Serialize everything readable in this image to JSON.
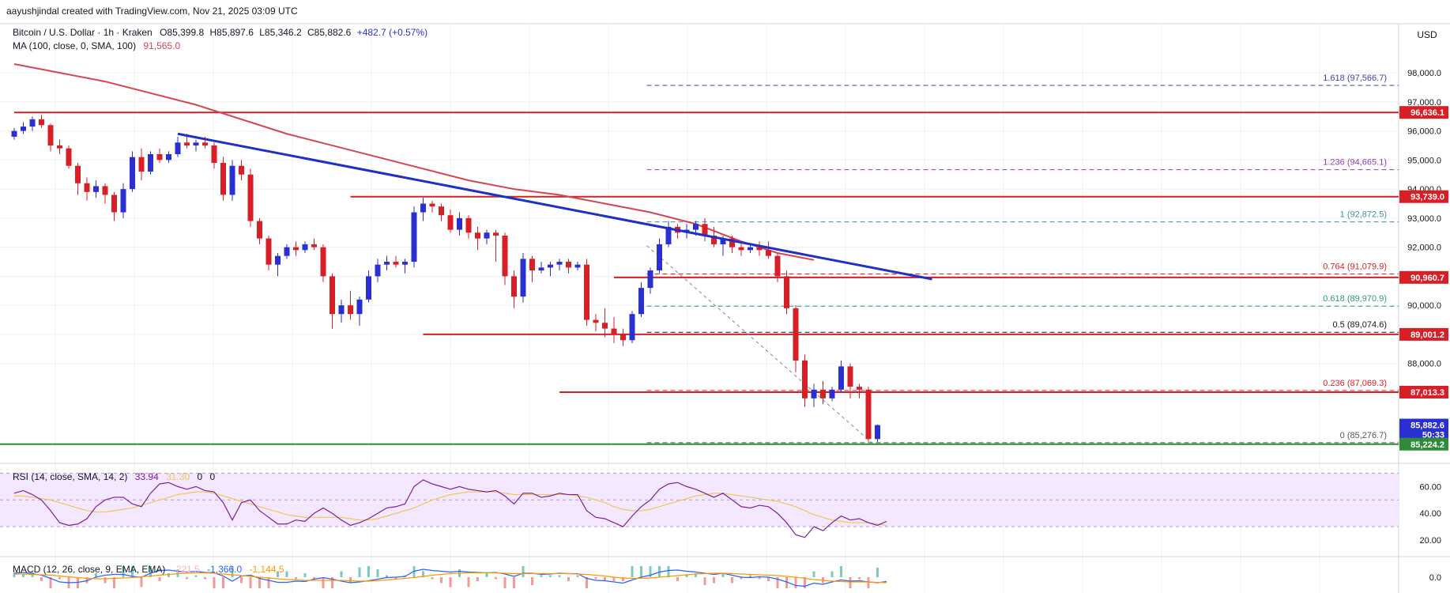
{
  "header": {
    "attribution": "aayushjindal created with TradingView.com, Nov 21, 2025 03:09 UTC",
    "symbol": "Bitcoin / U.S. Dollar · 1h · Kraken",
    "ohlc": {
      "o_label": "O",
      "o": "85,399.8",
      "h_label": "H",
      "h": "85,897.6",
      "l_label": "L",
      "l": "85,346.2",
      "c_label": "C",
      "c": "85,882.6",
      "change": "+482.7 (+0.57%)"
    },
    "ma_label": "MA (100, close, 0, SMA, 100)",
    "ma_value": "91,565.0",
    "currency": "USD"
  },
  "colors": {
    "up": "#2a2fd1",
    "down": "#d91f26",
    "ma": "#d64550",
    "trendline": "#1f2fc8",
    "resistance": "#d91f26",
    "support": "#2e8b3a",
    "rsi_line": "#7b1fa2",
    "rsi_ma": "#f2c94c",
    "rsi_band": "#f3e8ff",
    "macd": "#2962ff",
    "signal": "#ff9800"
  },
  "price_axis": {
    "ticks": [
      "98,000.0",
      "97,000.0",
      "96,000.0",
      "95,000.0",
      "94,000.0",
      "93,000.0",
      "92,000.0",
      "91,000.0",
      "90,000.0",
      "89,000.0",
      "88,000.0"
    ]
  },
  "price_tags": [
    {
      "value": "96,636.1",
      "color": "#d91f26"
    },
    {
      "value": "93,739.0",
      "color": "#d91f26"
    },
    {
      "value": "90,960.7",
      "color": "#d91f26"
    },
    {
      "value": "89,001.2",
      "color": "#d91f26"
    },
    {
      "value": "87,013.3",
      "color": "#d91f26"
    },
    {
      "value": "85,882.6",
      "color": "#2a2fd1",
      "countdown": "50:33"
    },
    {
      "value": "85,224.2",
      "color": "#2e8b3a"
    }
  ],
  "fib_levels": [
    {
      "ratio": "1.618",
      "price": "(97,566.7)",
      "color": "#3f3fb0"
    },
    {
      "ratio": "1.236",
      "price": "(94,665.1)",
      "color": "#8e3fb0"
    },
    {
      "ratio": "1",
      "price": "(92,872.5)",
      "color": "#3f8fb0"
    },
    {
      "ratio": "0.764",
      "price": "(91,079.9)",
      "color": "#d91f26"
    },
    {
      "ratio": "0.618",
      "price": "(89,970.9)",
      "color": "#2e9b6a"
    },
    {
      "ratio": "0.5",
      "price": "(89,074.6)",
      "color": "#131722"
    },
    {
      "ratio": "0.236",
      "price": "(87,069.3)",
      "color": "#d91f26"
    },
    {
      "ratio": "0",
      "price": "(85,276.7)",
      "color": "#555555"
    }
  ],
  "rsi": {
    "label": "RSI (14, close, SMA, 14, 2)",
    "value": "33.94",
    "ma_value": "31.30",
    "extra1": "0",
    "extra2": "0",
    "ticks": [
      "60.00",
      "40.00",
      "20.00"
    ]
  },
  "macd": {
    "label": "MACD (12, 26, close, 9, EMA, EMA)",
    "hist": "-221.5",
    "macd": "-1,366.0",
    "signal": "-1,144.5",
    "ticks": [
      "0.0"
    ]
  },
  "chart_data": {
    "type": "candlestick",
    "title": "Bitcoin / U.S. Dollar · 1h · Kraken",
    "ylim": [
      85000,
      98600
    ],
    "candles": [
      [
        95800,
        96100,
        95700,
        96000
      ],
      [
        96000,
        96300,
        95900,
        96150
      ],
      [
        96150,
        96500,
        96000,
        96400
      ],
      [
        96400,
        96550,
        96100,
        96200
      ],
      [
        96200,
        96250,
        95300,
        95500
      ],
      [
        95500,
        95700,
        95200,
        95400
      ],
      [
        95400,
        95500,
        94700,
        94800
      ],
      [
        94800,
        94900,
        93800,
        94200
      ],
      [
        94200,
        94400,
        93600,
        93900
      ],
      [
        93900,
        94300,
        93700,
        94100
      ],
      [
        94100,
        94200,
        93500,
        93800
      ],
      [
        93800,
        93900,
        92900,
        93200
      ],
      [
        93200,
        94200,
        93000,
        94000
      ],
      [
        94000,
        95300,
        93900,
        95100
      ],
      [
        95100,
        95400,
        94300,
        94600
      ],
      [
        94600,
        95300,
        94500,
        95200
      ],
      [
        95200,
        95400,
        94900,
        95000
      ],
      [
        95000,
        95300,
        94900,
        95200
      ],
      [
        95200,
        95800,
        95100,
        95600
      ],
      [
        95600,
        95900,
        95400,
        95500
      ],
      [
        95500,
        95700,
        95300,
        95600
      ],
      [
        95600,
        95800,
        95400,
        95500
      ],
      [
        95500,
        95600,
        94700,
        94900
      ],
      [
        94900,
        95100,
        93600,
        93800
      ],
      [
        93800,
        95000,
        93600,
        94800
      ],
      [
        94800,
        95000,
        94300,
        94500
      ],
      [
        94500,
        94700,
        92700,
        92900
      ],
      [
        92900,
        93000,
        92100,
        92300
      ],
      [
        92300,
        92400,
        91200,
        91400
      ],
      [
        91400,
        91800,
        91000,
        91700
      ],
      [
        91700,
        92100,
        91600,
        92000
      ],
      [
        92000,
        92200,
        91700,
        91900
      ],
      [
        91900,
        92200,
        91800,
        92100
      ],
      [
        92100,
        92300,
        91900,
        92000
      ],
      [
        92000,
        92100,
        90800,
        91000
      ],
      [
        91000,
        91100,
        89200,
        89700
      ],
      [
        89700,
        90200,
        89400,
        90000
      ],
      [
        90000,
        90500,
        89500,
        89700
      ],
      [
        89700,
        90300,
        89300,
        90200
      ],
      [
        90200,
        91200,
        90100,
        91000
      ],
      [
        91000,
        91600,
        90800,
        91400
      ],
      [
        91400,
        91700,
        91200,
        91500
      ],
      [
        91500,
        91700,
        91300,
        91400
      ],
      [
        91400,
        91600,
        91100,
        91500
      ],
      [
        91500,
        93400,
        91300,
        93200
      ],
      [
        93200,
        93700,
        92900,
        93500
      ],
      [
        93500,
        93600,
        93200,
        93400
      ],
      [
        93400,
        93500,
        92900,
        93100
      ],
      [
        93100,
        93300,
        92500,
        92600
      ],
      [
        92600,
        93200,
        92400,
        93000
      ],
      [
        93000,
        93100,
        92300,
        92500
      ],
      [
        92500,
        92700,
        91900,
        92300
      ],
      [
        92300,
        92600,
        92100,
        92500
      ],
      [
        92500,
        92600,
        91500,
        92400
      ],
      [
        92400,
        92500,
        90700,
        91000
      ],
      [
        91000,
        91200,
        89900,
        90300
      ],
      [
        90300,
        91800,
        90100,
        91600
      ],
      [
        91600,
        91700,
        90800,
        91200
      ],
      [
        91200,
        91500,
        91100,
        91300
      ],
      [
        91300,
        91500,
        91000,
        91400
      ],
      [
        91400,
        91600,
        91200,
        91500
      ],
      [
        91500,
        91600,
        91100,
        91300
      ],
      [
        91300,
        91500,
        91200,
        91400
      ],
      [
        91400,
        91600,
        89300,
        89500
      ],
      [
        89500,
        89700,
        89100,
        89400
      ],
      [
        89400,
        89900,
        88900,
        89200
      ],
      [
        89200,
        89600,
        88700,
        89000
      ],
      [
        89000,
        89200,
        88600,
        88800
      ],
      [
        88800,
        89800,
        88700,
        89700
      ],
      [
        89700,
        90800,
        89600,
        90600
      ],
      [
        90600,
        91300,
        90400,
        91200
      ],
      [
        91200,
        92300,
        91100,
        92100
      ],
      [
        92100,
        92900,
        92000,
        92700
      ],
      [
        92700,
        92800,
        92300,
        92500
      ],
      [
        92500,
        92800,
        92300,
        92600
      ],
      [
        92600,
        92900,
        92400,
        92800
      ],
      [
        92800,
        93000,
        92200,
        92400
      ],
      [
        92400,
        92700,
        92000,
        92100
      ],
      [
        92100,
        92400,
        91700,
        92300
      ],
      [
        92300,
        92400,
        91800,
        92000
      ],
      [
        92000,
        92200,
        91700,
        91900
      ],
      [
        91900,
        92100,
        91800,
        92000
      ],
      [
        92000,
        92200,
        91700,
        91900
      ],
      [
        91900,
        92200,
        91600,
        91700
      ],
      [
        91700,
        91800,
        90800,
        91000
      ],
      [
        91000,
        91200,
        89700,
        89900
      ],
      [
        89900,
        90000,
        87700,
        88100
      ],
      [
        88100,
        88300,
        86500,
        86800
      ],
      [
        86800,
        87300,
        86500,
        87100
      ],
      [
        87100,
        87400,
        86600,
        86800
      ],
      [
        86800,
        87200,
        86700,
        87100
      ],
      [
        87100,
        88100,
        87000,
        87900
      ],
      [
        87900,
        88000,
        86800,
        87200
      ],
      [
        87200,
        87300,
        86800,
        87100
      ],
      [
        87100,
        87200,
        85300,
        85400
      ],
      [
        85400,
        85900,
        85300,
        85880
      ]
    ],
    "ma_points": [
      [
        0,
        98300
      ],
      [
        10,
        97700
      ],
      [
        20,
        96900
      ],
      [
        30,
        95900
      ],
      [
        40,
        95100
      ],
      [
        50,
        94300
      ],
      [
        55,
        94000
      ],
      [
        60,
        93800
      ],
      [
        65,
        93500
      ],
      [
        70,
        93200
      ],
      [
        75,
        92800
      ],
      [
        80,
        92200
      ],
      [
        84,
        91800
      ],
      [
        88,
        91560
      ]
    ],
    "trendline": {
      "start": [
        18,
        95900
      ],
      "end": [
        101,
        90900
      ]
    },
    "resistance_levels": [
      {
        "value": 96636.1,
        "from": 0
      },
      {
        "value": 93739.0,
        "from": 37
      },
      {
        "value": 90960.7,
        "from": 66
      },
      {
        "value": 89001.2,
        "from": 45
      },
      {
        "value": 87013.3,
        "from": 60
      }
    ],
    "support_level": {
      "value": 85224.2,
      "from": 0
    },
    "fib_prices": [
      97566.7,
      94665.1,
      92872.5,
      91079.9,
      89970.9,
      89074.6,
      87069.3,
      85276.7
    ],
    "fib_from": 67,
    "rsi_values": [
      55,
      57,
      54,
      50,
      42,
      33,
      31,
      32,
      36,
      45,
      50,
      52,
      52,
      47,
      45,
      55,
      62,
      63,
      60,
      58,
      60,
      57,
      56,
      48,
      35,
      48,
      50,
      42,
      37,
      32,
      32,
      35,
      34,
      40,
      44,
      40,
      35,
      31,
      33,
      36,
      40,
      44,
      45,
      47,
      60,
      65,
      62,
      60,
      58,
      60,
      58,
      57,
      56,
      57,
      53,
      47,
      55,
      55,
      52,
      53,
      55,
      54,
      54,
      42,
      37,
      36,
      33,
      30,
      38,
      45,
      50,
      58,
      62,
      63,
      60,
      58,
      55,
      52,
      55,
      50,
      45,
      44,
      46,
      45,
      40,
      33,
      24,
      22,
      30,
      27,
      33,
      38,
      35,
      36,
      33,
      31,
      34
    ],
    "rsi_ma_values": [
      53,
      53,
      52,
      51,
      50,
      48,
      46,
      44,
      42,
      41,
      41,
      42,
      43,
      44,
      46,
      48,
      50,
      52,
      54,
      55,
      56,
      56,
      55,
      53,
      51,
      49,
      47,
      45,
      43,
      41,
      39,
      38,
      37,
      37,
      37,
      37,
      37,
      36,
      35,
      35,
      36,
      38,
      40,
      42,
      44,
      47,
      50,
      52,
      54,
      55,
      56,
      56,
      56,
      56,
      55,
      54,
      54,
      54,
      54,
      54,
      54,
      54,
      53,
      52,
      50,
      48,
      45,
      43,
      42,
      42,
      43,
      45,
      47,
      49,
      51,
      53,
      54,
      55,
      55,
      54,
      53,
      52,
      51,
      50,
      49,
      47,
      45,
      42,
      39,
      37,
      35,
      34,
      33,
      33,
      33,
      32,
      31
    ]
  }
}
